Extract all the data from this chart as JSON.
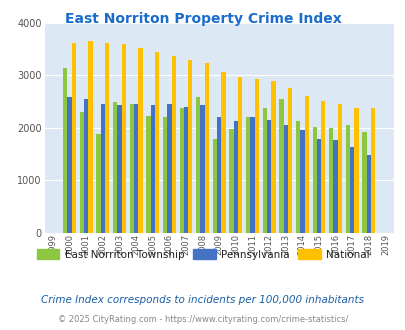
{
  "title": "East Norriton Property Crime Index",
  "years": [
    "1999",
    "2000",
    "2001",
    "2002",
    "2003",
    "2004",
    "2005",
    "2006",
    "2007",
    "2008",
    "2009",
    "2010",
    "2011",
    "2012",
    "2013",
    "2014",
    "2015",
    "2016",
    "2017",
    "2018",
    "2019"
  ],
  "east_norriton": [
    null,
    3150,
    2300,
    1880,
    2500,
    2450,
    2220,
    2200,
    2380,
    2580,
    1780,
    1980,
    2200,
    2370,
    2560,
    2130,
    2020,
    2000,
    2060,
    1920,
    null
  ],
  "pennsylvania": [
    null,
    2590,
    2560,
    2460,
    2440,
    2450,
    2440,
    2460,
    2390,
    2440,
    2200,
    2140,
    2200,
    2150,
    2060,
    1950,
    1790,
    1760,
    1640,
    1490,
    null
  ],
  "national": [
    null,
    3620,
    3660,
    3620,
    3600,
    3520,
    3450,
    3380,
    3300,
    3230,
    3060,
    2980,
    2940,
    2890,
    2760,
    2610,
    2510,
    2450,
    2380,
    2380,
    null
  ],
  "bar_color_east": "#8dc63f",
  "bar_color_pa": "#4472c4",
  "bar_color_national": "#ffc000",
  "bg_color": "#dce9f5",
  "ylim": [
    0,
    4000
  ],
  "yticks": [
    0,
    1000,
    2000,
    3000,
    4000
  ],
  "subtitle": "Crime Index corresponds to incidents per 100,000 inhabitants",
  "footer": "© 2025 CityRating.com - https://www.cityrating.com/crime-statistics/",
  "legend_labels": [
    "East Norriton Township",
    "Pennsylvania",
    "National"
  ]
}
